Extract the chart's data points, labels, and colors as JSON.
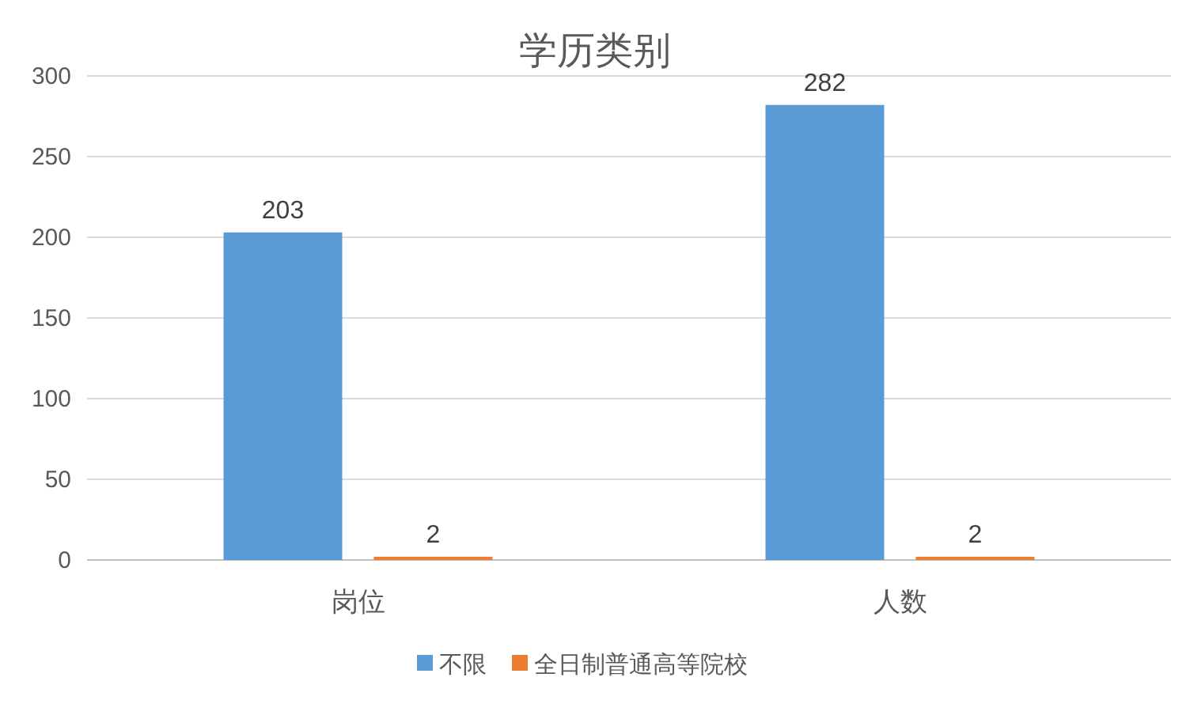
{
  "chart_data": {
    "type": "bar",
    "title": "学历类别",
    "categories": [
      "岗位",
      "人数"
    ],
    "series": [
      {
        "name": "不限",
        "color": "#5b9bd5",
        "values": [
          203,
          282
        ]
      },
      {
        "name": "全日制普通高等院校",
        "color": "#ed7d31",
        "values": [
          2,
          2
        ]
      }
    ],
    "ylim": [
      0,
      300
    ],
    "yticks": [
      0,
      50,
      100,
      150,
      200,
      250,
      300
    ],
    "grid": "y",
    "legend": "bottom",
    "data_labels": true
  }
}
